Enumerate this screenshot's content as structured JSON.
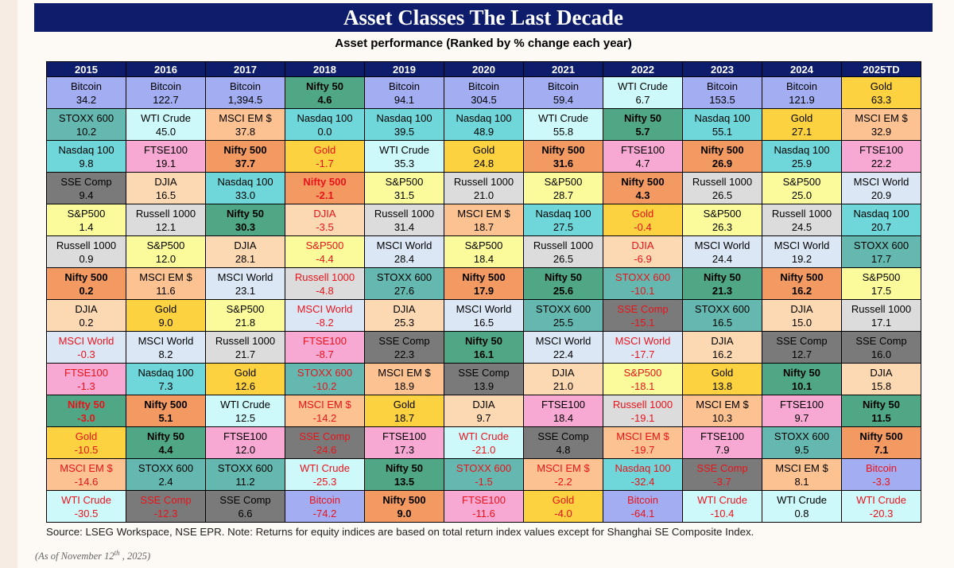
{
  "title": "Asset Classes The Last Decade",
  "subtitle": "Asset performance (Ranked by % change each year)",
  "source": "Source: LSEG Workspace, NSE EPR. Note: Returns for equity indices are based on total return index values except for Shanghai SE Composite Index.",
  "as_of": {
    "prefix": "(As of November 12",
    "sup": "th",
    "suffix": " , 2025)"
  },
  "colors": {
    "Bitcoin": "#a3aef2",
    "STOXX 600": "#65b8b0",
    "Nasdaq 100": "#6fd6d9",
    "SSE Comp": "#7a7a7a",
    "S&P500": "#fbfb9c",
    "Russell 1000": "#dcdcdc",
    "Nifty 500": "#f39a63",
    "DJIA": "#fcd9b3",
    "MSCI World": "#dbe7f5",
    "FTSE100": "#f7a9d3",
    "Nifty 50": "#4fa785",
    "Gold": "#fdd241",
    "MSCI EM $": "#fdc292",
    "WTI Crude": "#cef9fa"
  },
  "bold_assets": [
    "Nifty 50",
    "Nifty 500"
  ],
  "chart_data": {
    "type": "table",
    "title": "Asset Classes The Last Decade",
    "subtitle": "Asset performance (Ranked by % change each year)",
    "years": [
      "2015",
      "2016",
      "2017",
      "2018",
      "2019",
      "2020",
      "2021",
      "2022",
      "2023",
      "2024",
      "2025TD"
    ],
    "columns": [
      [
        [
          "Bitcoin",
          "34.2"
        ],
        [
          "STOXX 600",
          "10.2"
        ],
        [
          "Nasdaq 100",
          "9.8"
        ],
        [
          "SSE Comp",
          "9.4"
        ],
        [
          "S&P500",
          "1.4"
        ],
        [
          "Russell 1000",
          "0.9"
        ],
        [
          "Nifty 500",
          "0.2"
        ],
        [
          "DJIA",
          "0.2"
        ],
        [
          "MSCI World",
          "-0.3"
        ],
        [
          "FTSE100",
          "-1.3"
        ],
        [
          "Nifty 50",
          "-3.0"
        ],
        [
          "Gold",
          "-10.5"
        ],
        [
          "MSCI EM $",
          "-14.6"
        ],
        [
          "WTI Crude",
          "-30.5"
        ]
      ],
      [
        [
          "Bitcoin",
          "122.7"
        ],
        [
          "WTI Crude",
          "45.0"
        ],
        [
          "FTSE100",
          "19.1"
        ],
        [
          "DJIA",
          "16.5"
        ],
        [
          "Russell 1000",
          "12.1"
        ],
        [
          "S&P500",
          "12.0"
        ],
        [
          "MSCI EM $",
          "11.6"
        ],
        [
          "Gold",
          "9.0"
        ],
        [
          "MSCI World",
          "8.2"
        ],
        [
          "Nasdaq 100",
          "7.3"
        ],
        [
          "Nifty 500",
          "5.1"
        ],
        [
          "Nifty 50",
          "4.4"
        ],
        [
          "STOXX 600",
          "2.4"
        ],
        [
          "SSE Comp",
          "-12.3"
        ]
      ],
      [
        [
          "Bitcoin",
          "1,394.5"
        ],
        [
          "MSCI EM $",
          "37.8"
        ],
        [
          "Nifty 500",
          "37.7"
        ],
        [
          "Nasdaq 100",
          "33.0"
        ],
        [
          "Nifty 50",
          "30.3"
        ],
        [
          "DJIA",
          "28.1"
        ],
        [
          "MSCI World",
          "23.1"
        ],
        [
          "S&P500",
          "21.8"
        ],
        [
          "Russell 1000",
          "21.7"
        ],
        [
          "Gold",
          "12.6"
        ],
        [
          "WTI Crude",
          "12.5"
        ],
        [
          "FTSE100",
          "12.0"
        ],
        [
          "STOXX 600",
          "11.2"
        ],
        [
          "SSE Comp",
          "6.6"
        ]
      ],
      [
        [
          "Nifty 50",
          "4.6"
        ],
        [
          "Nasdaq 100",
          "0.0"
        ],
        [
          "Gold",
          "-1.7"
        ],
        [
          "Nifty 500",
          "-2.1"
        ],
        [
          "DJIA",
          "-3.5"
        ],
        [
          "S&P500",
          "-4.4"
        ],
        [
          "Russell 1000",
          "-4.8"
        ],
        [
          "MSCI World",
          "-8.2"
        ],
        [
          "FTSE100",
          "-8.7"
        ],
        [
          "STOXX 600",
          "-10.2"
        ],
        [
          "MSCI EM $",
          "-14.2"
        ],
        [
          "SSE Comp",
          "-24.6"
        ],
        [
          "WTI Crude",
          "-25.3"
        ],
        [
          "Bitcoin",
          "-74.2"
        ]
      ],
      [
        [
          "Bitcoin",
          "94.1"
        ],
        [
          "Nasdaq 100",
          "39.5"
        ],
        [
          "WTI Crude",
          "35.3"
        ],
        [
          "S&P500",
          "31.5"
        ],
        [
          "Russell 1000",
          "31.4"
        ],
        [
          "MSCI World",
          "28.4"
        ],
        [
          "STOXX 600",
          "27.6"
        ],
        [
          "DJIA",
          "25.3"
        ],
        [
          "SSE Comp",
          "22.3"
        ],
        [
          "MSCI EM $",
          "18.9"
        ],
        [
          "Gold",
          "18.7"
        ],
        [
          "FTSE100",
          "17.3"
        ],
        [
          "Nifty 50",
          "13.5"
        ],
        [
          "Nifty 500",
          "9.0"
        ]
      ],
      [
        [
          "Bitcoin",
          "304.5"
        ],
        [
          "Nasdaq 100",
          "48.9"
        ],
        [
          "Gold",
          "24.8"
        ],
        [
          "Russell 1000",
          "21.0"
        ],
        [
          "MSCI EM $",
          "18.7"
        ],
        [
          "S&P500",
          "18.4"
        ],
        [
          "Nifty 500",
          "17.9"
        ],
        [
          "MSCI World",
          "16.5"
        ],
        [
          "Nifty 50",
          "16.1"
        ],
        [
          "SSE Comp",
          "13.9"
        ],
        [
          "DJIA",
          "9.7"
        ],
        [
          "WTI Crude",
          "-21.0"
        ],
        [
          "STOXX 600",
          "-1.5"
        ],
        [
          "FTSE100",
          "-11.6"
        ]
      ],
      [
        [
          "Bitcoin",
          "59.4"
        ],
        [
          "WTI Crude",
          "55.8"
        ],
        [
          "Nifty 500",
          "31.6"
        ],
        [
          "S&P500",
          "28.7"
        ],
        [
          "Nasdaq 100",
          "27.5"
        ],
        [
          "Russell 1000",
          "26.5"
        ],
        [
          "Nifty 50",
          "25.6"
        ],
        [
          "STOXX 600",
          "25.5"
        ],
        [
          "MSCI World",
          "22.4"
        ],
        [
          "DJIA",
          "21.0"
        ],
        [
          "FTSE100",
          "18.4"
        ],
        [
          "SSE Comp",
          "4.8"
        ],
        [
          "MSCI EM $",
          "-2.2"
        ],
        [
          "Gold",
          "-4.0"
        ]
      ],
      [
        [
          "WTI Crude",
          "6.7"
        ],
        [
          "Nifty 50",
          "5.7"
        ],
        [
          "FTSE100",
          "4.7"
        ],
        [
          "Nifty 500",
          "4.3"
        ],
        [
          "Gold",
          "-0.4"
        ],
        [
          "DJIA",
          "-6.9"
        ],
        [
          "STOXX 600",
          "-10.1"
        ],
        [
          "SSE Comp",
          "-15.1"
        ],
        [
          "MSCI World",
          "-17.7"
        ],
        [
          "S&P500",
          "-18.1"
        ],
        [
          "Russell 1000",
          "-19.1"
        ],
        [
          "MSCI EM $",
          "-19.7"
        ],
        [
          "Nasdaq 100",
          "-32.4"
        ],
        [
          "Bitcoin",
          "-64.1"
        ]
      ],
      [
        [
          "Bitcoin",
          "153.5"
        ],
        [
          "Nasdaq 100",
          "55.1"
        ],
        [
          "Nifty 500",
          "26.9"
        ],
        [
          "Russell 1000",
          "26.5"
        ],
        [
          "S&P500",
          "26.3"
        ],
        [
          "MSCI World",
          "24.4"
        ],
        [
          "Nifty 50",
          "21.3"
        ],
        [
          "STOXX 600",
          "16.5"
        ],
        [
          "DJIA",
          "16.2"
        ],
        [
          "Gold",
          "13.8"
        ],
        [
          "MSCI EM $",
          "10.3"
        ],
        [
          "FTSE100",
          "7.9"
        ],
        [
          "SSE Comp",
          "-3.7"
        ],
        [
          "WTI Crude",
          "-10.4"
        ]
      ],
      [
        [
          "Bitcoin",
          "121.9"
        ],
        [
          "Gold",
          "27.1"
        ],
        [
          "Nasdaq 100",
          "25.9"
        ],
        [
          "S&P500",
          "25.0"
        ],
        [
          "Russell 1000",
          "24.5"
        ],
        [
          "MSCI World",
          "19.2"
        ],
        [
          "Nifty 500",
          "16.2"
        ],
        [
          "DJIA",
          "15.0"
        ],
        [
          "SSE Comp",
          "12.7"
        ],
        [
          "Nifty 50",
          "10.1"
        ],
        [
          "FTSE100",
          "9.7"
        ],
        [
          "STOXX 600",
          "9.5"
        ],
        [
          "MSCI EM $",
          "8.1"
        ],
        [
          "WTI Crude",
          "0.8"
        ]
      ],
      [
        [
          "Gold",
          "63.3"
        ],
        [
          "MSCI EM $",
          "32.9"
        ],
        [
          "FTSE100",
          "22.2"
        ],
        [
          "MSCI World",
          "20.9"
        ],
        [
          "Nasdaq 100",
          "20.7"
        ],
        [
          "STOXX 600",
          "17.7"
        ],
        [
          "S&P500",
          "17.5"
        ],
        [
          "Russell 1000",
          "17.1"
        ],
        [
          "SSE Comp",
          "16.0"
        ],
        [
          "DJIA",
          "15.8"
        ],
        [
          "Nifty 50",
          "11.5"
        ],
        [
          "Nifty 500",
          "7.1"
        ],
        [
          "Bitcoin",
          "-3.3"
        ],
        [
          "WTI Crude",
          "-20.3"
        ]
      ]
    ]
  }
}
